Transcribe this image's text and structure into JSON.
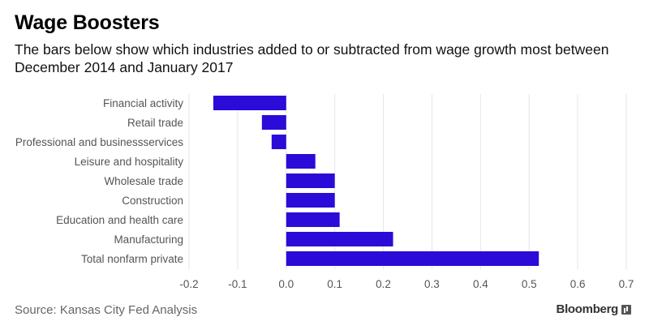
{
  "title": "Wage Boosters",
  "subtitle": "The bars below show which industries added to or subtracted from wage growth most between December 2014 and January 2017",
  "source": "Source: Kansas City Fed Analysis",
  "brand": "Bloomberg",
  "chart_data": {
    "type": "bar",
    "orientation": "horizontal",
    "categories": [
      "Financial activity",
      "Retail trade",
      "Professional and businessservices",
      "Leisure and hospitality",
      "Wholesale trade",
      "Construction",
      "Education and health care",
      "Manufacturing",
      "Total nonfarm private"
    ],
    "values": [
      -0.15,
      -0.05,
      -0.03,
      0.06,
      0.1,
      0.1,
      0.11,
      0.22,
      0.52
    ],
    "xlim": [
      -0.2,
      0.7
    ],
    "xticks": [
      "-0.2",
      "-0.1",
      "0.0",
      "0.1",
      "0.2",
      "0.3",
      "0.4",
      "0.5",
      "0.6",
      "0.7"
    ],
    "bar_color": "#2a0bd8",
    "grid": true,
    "xlabel": "",
    "ylabel": ""
  }
}
